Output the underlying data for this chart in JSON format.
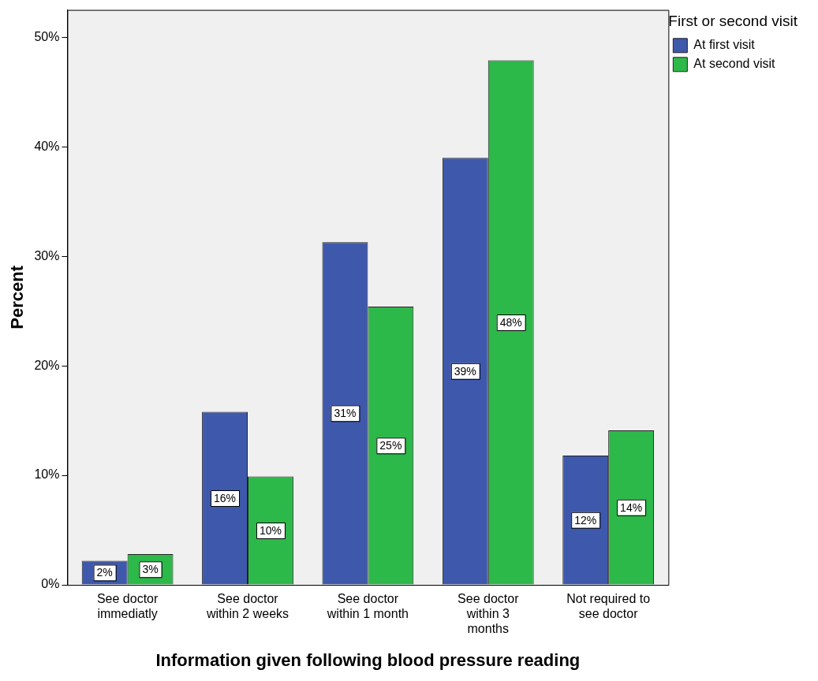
{
  "chart_data": {
    "type": "bar",
    "xlabel": "Information given following blood pressure reading",
    "ylabel": "Percent",
    "legend_title": "First or second visit",
    "legend": "top right",
    "grid": false,
    "categories": [
      "See doctor immediatly",
      "See doctor within 2 weeks",
      "See doctor within 1 month",
      "See doctor within 3 months",
      "Not required to see doctor"
    ],
    "series": [
      {
        "name": "At first visit",
        "color": "#3e58ac",
        "values": [
          2.2,
          15.8,
          31.3,
          39.0,
          11.8
        ],
        "value_labels": [
          "2%",
          "16%",
          "31%",
          "39%",
          "12%"
        ]
      },
      {
        "name": "At second visit",
        "color": "#2db84a",
        "values": [
          2.8,
          9.9,
          25.4,
          47.9,
          14.1
        ],
        "value_labels": [
          "3%",
          "10%",
          "25%",
          "48%",
          "14%"
        ]
      }
    ],
    "ylim": [
      0,
      52.5
    ],
    "yticks": [
      {
        "value": 0,
        "label": "0%"
      },
      {
        "value": 10,
        "label": "10%"
      },
      {
        "value": 20,
        "label": "20%"
      },
      {
        "value": 30,
        "label": "30%"
      },
      {
        "value": 40,
        "label": "40%"
      },
      {
        "value": 50,
        "label": "50%"
      }
    ]
  }
}
